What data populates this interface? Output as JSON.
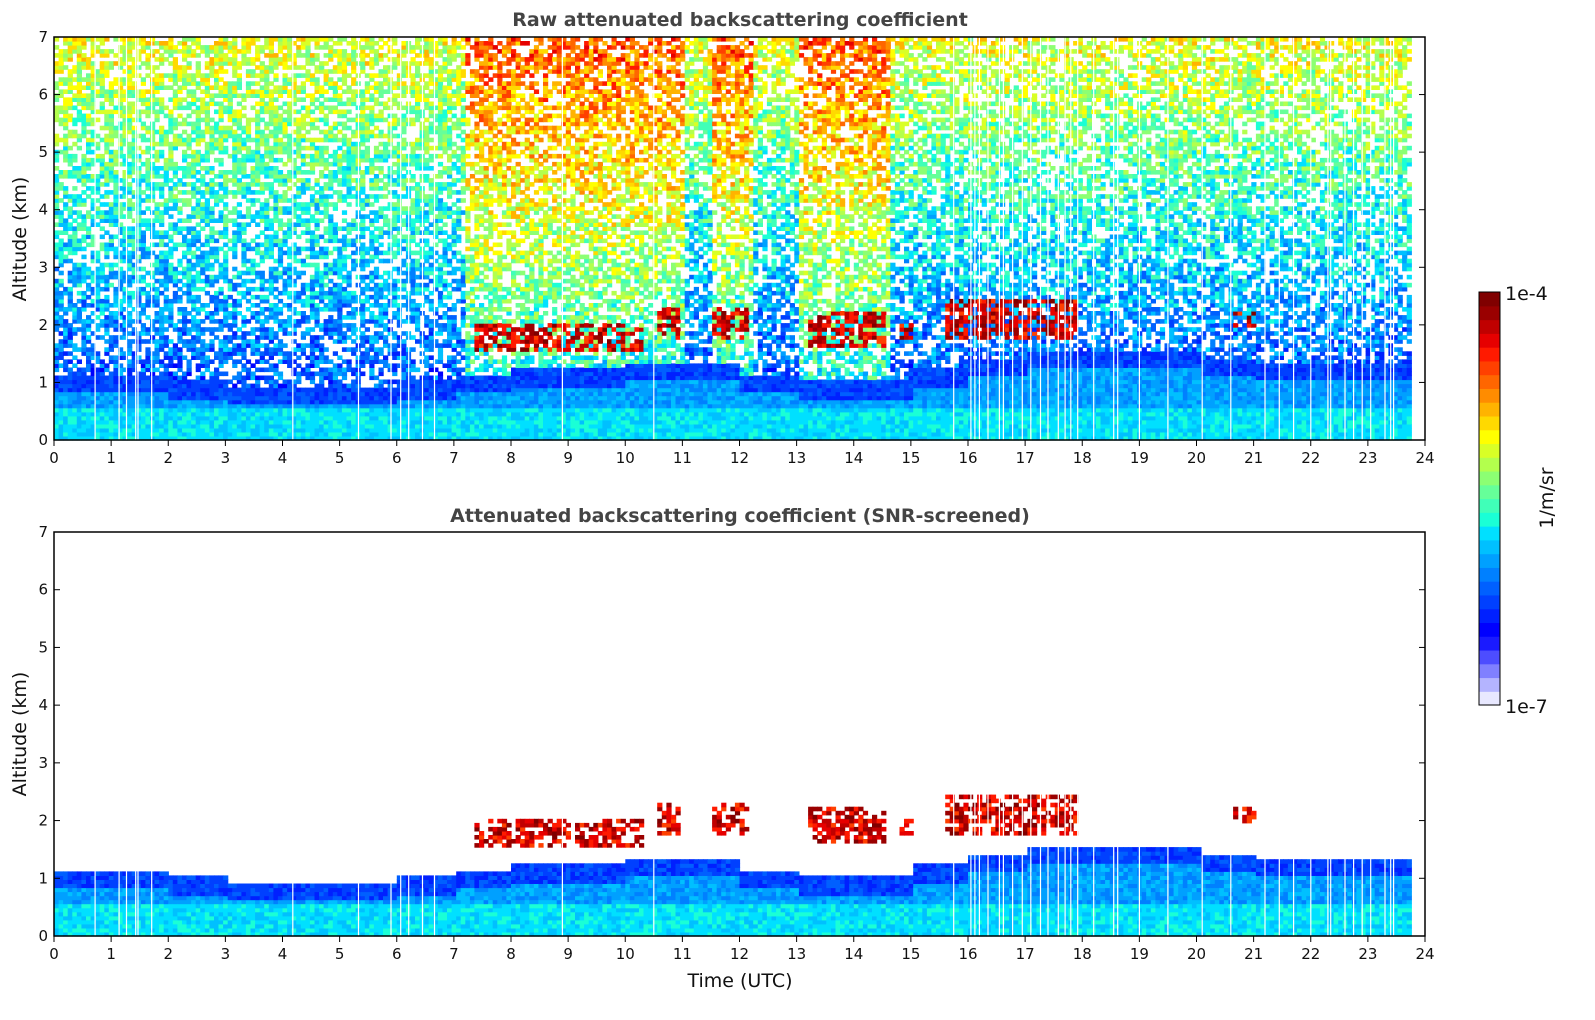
{
  "chart_data": [
    {
      "type": "heatmap",
      "title": "Raw attenuated backscattering coefficient",
      "xlabel": "",
      "ylabel": "Altitude (km)",
      "xlim": [
        0,
        24
      ],
      "ylim": [
        0,
        7
      ],
      "xticks": [
        "0",
        "1",
        "2",
        "3",
        "4",
        "5",
        "6",
        "7",
        "8",
        "9",
        "10",
        "11",
        "12",
        "13",
        "14",
        "15",
        "16",
        "17",
        "18",
        "19",
        "20",
        "21",
        "22",
        "23",
        "24"
      ],
      "yticks": [
        "0",
        "1",
        "2",
        "3",
        "4",
        "5",
        "6",
        "7"
      ],
      "data_end_time": 23.7,
      "boundary_layer_top_km": [
        1.1,
        1.1,
        1.0,
        0.9,
        0.9,
        0.9,
        1.0,
        1.1,
        1.2,
        1.2,
        1.3,
        1.3,
        1.1,
        1.0,
        1.0,
        1.2,
        1.4,
        1.5,
        1.5,
        1.5,
        1.4,
        1.3,
        1.3,
        1.3
      ],
      "cloud_layers": [
        {
          "start": 7.3,
          "end": 10.3,
          "base_km": 1.5,
          "top_km": 2.0
        },
        {
          "start": 10.5,
          "end": 10.9,
          "base_km": 1.7,
          "top_km": 2.3
        },
        {
          "start": 11.5,
          "end": 12.1,
          "base_km": 1.7,
          "top_km": 2.3
        },
        {
          "start": 13.2,
          "end": 14.5,
          "base_km": 1.6,
          "top_km": 2.2
        },
        {
          "start": 14.8,
          "end": 15.0,
          "base_km": 1.7,
          "top_km": 2.0
        },
        {
          "start": 15.6,
          "end": 17.9,
          "base_km": 1.7,
          "top_km": 2.4
        },
        {
          "start": 20.6,
          "end": 21.0,
          "base_km": 1.95,
          "top_km": 2.2
        }
      ],
      "noise": true
    },
    {
      "type": "heatmap",
      "title": "Attenuated backscattering coefficient (SNR-screened)",
      "xlabel": "Time (UTC)",
      "ylabel": "Altitude (km)",
      "xlim": [
        0,
        24
      ],
      "ylim": [
        0,
        7
      ],
      "xticks": [
        "0",
        "1",
        "2",
        "3",
        "4",
        "5",
        "6",
        "7",
        "8",
        "9",
        "10",
        "11",
        "12",
        "13",
        "14",
        "15",
        "16",
        "17",
        "18",
        "19",
        "20",
        "21",
        "22",
        "23",
        "24"
      ],
      "yticks": [
        "0",
        "1",
        "2",
        "3",
        "4",
        "5",
        "6",
        "7"
      ],
      "data_end_time": 23.7,
      "noise": false
    }
  ],
  "colorbar": {
    "label": "1/m/sr",
    "max_label": "1e-4",
    "min_label": "1e-7",
    "scale": "log",
    "colors": [
      "#e8e8ff",
      "#b4b4ff",
      "#8080ff",
      "#4d4dff",
      "#1a1aff",
      "#0000ff",
      "#0020ff",
      "#0040ff",
      "#0060ff",
      "#0080ff",
      "#00a0ff",
      "#00c0ff",
      "#00e0ff",
      "#1affd6",
      "#40ffb8",
      "#66ff99",
      "#8cff73",
      "#b3ff4d",
      "#d9ff26",
      "#ffff00",
      "#ffd900",
      "#ffb300",
      "#ff8c00",
      "#ff6600",
      "#ff4000",
      "#ff1a00",
      "#e60000",
      "#c00000",
      "#9a0000",
      "#800000"
    ]
  },
  "gap_times": [
    0.72,
    1.14,
    1.27,
    1.43,
    1.47,
    1.71,
    4.18,
    5.33,
    5.9,
    6.07,
    6.21,
    6.45,
    6.66,
    8.9,
    10.5,
    15.75,
    16.05,
    16.12,
    16.2,
    16.35,
    16.55,
    16.62,
    16.78,
    16.95,
    17.1,
    17.27,
    17.4,
    17.58,
    17.7,
    17.8,
    17.92,
    18.2,
    18.55,
    18.62,
    19.0,
    19.5,
    20.1,
    20.6,
    21.2,
    21.45,
    21.7,
    22.0,
    22.3,
    22.35,
    22.6,
    22.75,
    22.9,
    23.05,
    23.3,
    23.4,
    23.45
  ]
}
